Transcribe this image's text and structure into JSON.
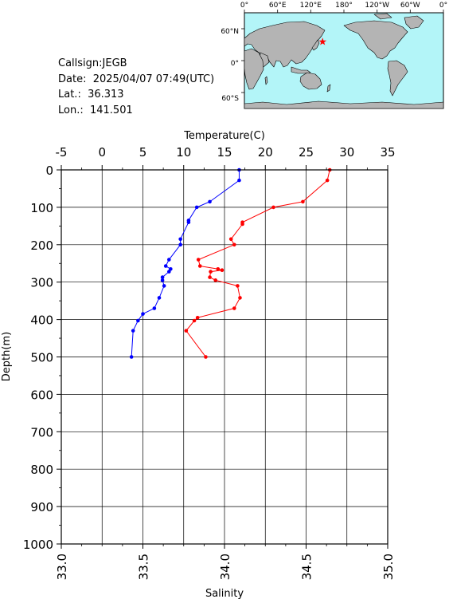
{
  "info": {
    "callsign": "Callsign:JEGB",
    "date": "Date:  2025/04/07 07:49(UTC)",
    "lat": "Lat.:  36.313",
    "lon": "Lon.:  141.501"
  },
  "map": {
    "lon_labels": [
      "0°",
      "60°E",
      "120°E",
      "180°",
      "120°W",
      "60°W",
      "0°"
    ],
    "lat_labels": [
      "60°N",
      "0°",
      "60°S"
    ],
    "station": {
      "lat": 36.313,
      "lon": 141.501
    },
    "ocean_color": "#b3f5f8",
    "land_color": "#b4b4b4",
    "marker_color": "#ff0000"
  },
  "chart_data": {
    "type": "line",
    "top_axis_label": "Temperature(C)",
    "bottom_axis_label": "Salinity",
    "y_axis_label": "Depth(m)",
    "temperature_range": [
      -5,
      35
    ],
    "temperature_ticks": [
      "-5",
      "0",
      "5",
      "10",
      "15",
      "20",
      "25",
      "30",
      "35"
    ],
    "salinity_range": [
      33.0,
      35.0
    ],
    "salinity_ticks": [
      "33.0",
      "33.5",
      "34.0",
      "34.5",
      "35.0"
    ],
    "depth_range": [
      0,
      1000
    ],
    "depth_ticks": [
      "0",
      "100",
      "200",
      "300",
      "400",
      "500",
      "600",
      "700",
      "800",
      "900",
      "1000"
    ],
    "grid": true,
    "series": [
      {
        "variable": "temperature",
        "color": "#ff0000",
        "points": [
          [
            27.9,
            0
          ],
          [
            27.6,
            28
          ],
          [
            24.6,
            85
          ],
          [
            21.0,
            100
          ],
          [
            17.2,
            140
          ],
          [
            17.2,
            145
          ],
          [
            15.8,
            185
          ],
          [
            16.2,
            200
          ],
          [
            11.8,
            240
          ],
          [
            12.0,
            257
          ],
          [
            14.2,
            265
          ],
          [
            14.7,
            268
          ],
          [
            13.3,
            272
          ],
          [
            13.2,
            287
          ],
          [
            13.9,
            295
          ],
          [
            16.6,
            310
          ],
          [
            16.9,
            342
          ],
          [
            16.2,
            370
          ],
          [
            11.7,
            395
          ],
          [
            11.3,
            403
          ],
          [
            10.3,
            430
          ],
          [
            12.7,
            500
          ]
        ]
      },
      {
        "variable": "salinity",
        "color": "#0000ff",
        "points": [
          [
            34.09,
            0
          ],
          [
            34.09,
            28
          ],
          [
            33.91,
            85
          ],
          [
            33.83,
            100
          ],
          [
            33.78,
            135
          ],
          [
            33.78,
            140
          ],
          [
            33.73,
            185
          ],
          [
            33.73,
            200
          ],
          [
            33.66,
            240
          ],
          [
            33.64,
            257
          ],
          [
            33.67,
            265
          ],
          [
            33.66,
            272
          ],
          [
            33.62,
            287
          ],
          [
            33.62,
            295
          ],
          [
            33.63,
            310
          ],
          [
            33.6,
            342
          ],
          [
            33.57,
            370
          ],
          [
            33.5,
            385
          ],
          [
            33.47,
            403
          ],
          [
            33.44,
            430
          ],
          [
            33.43,
            500
          ]
        ]
      }
    ]
  }
}
